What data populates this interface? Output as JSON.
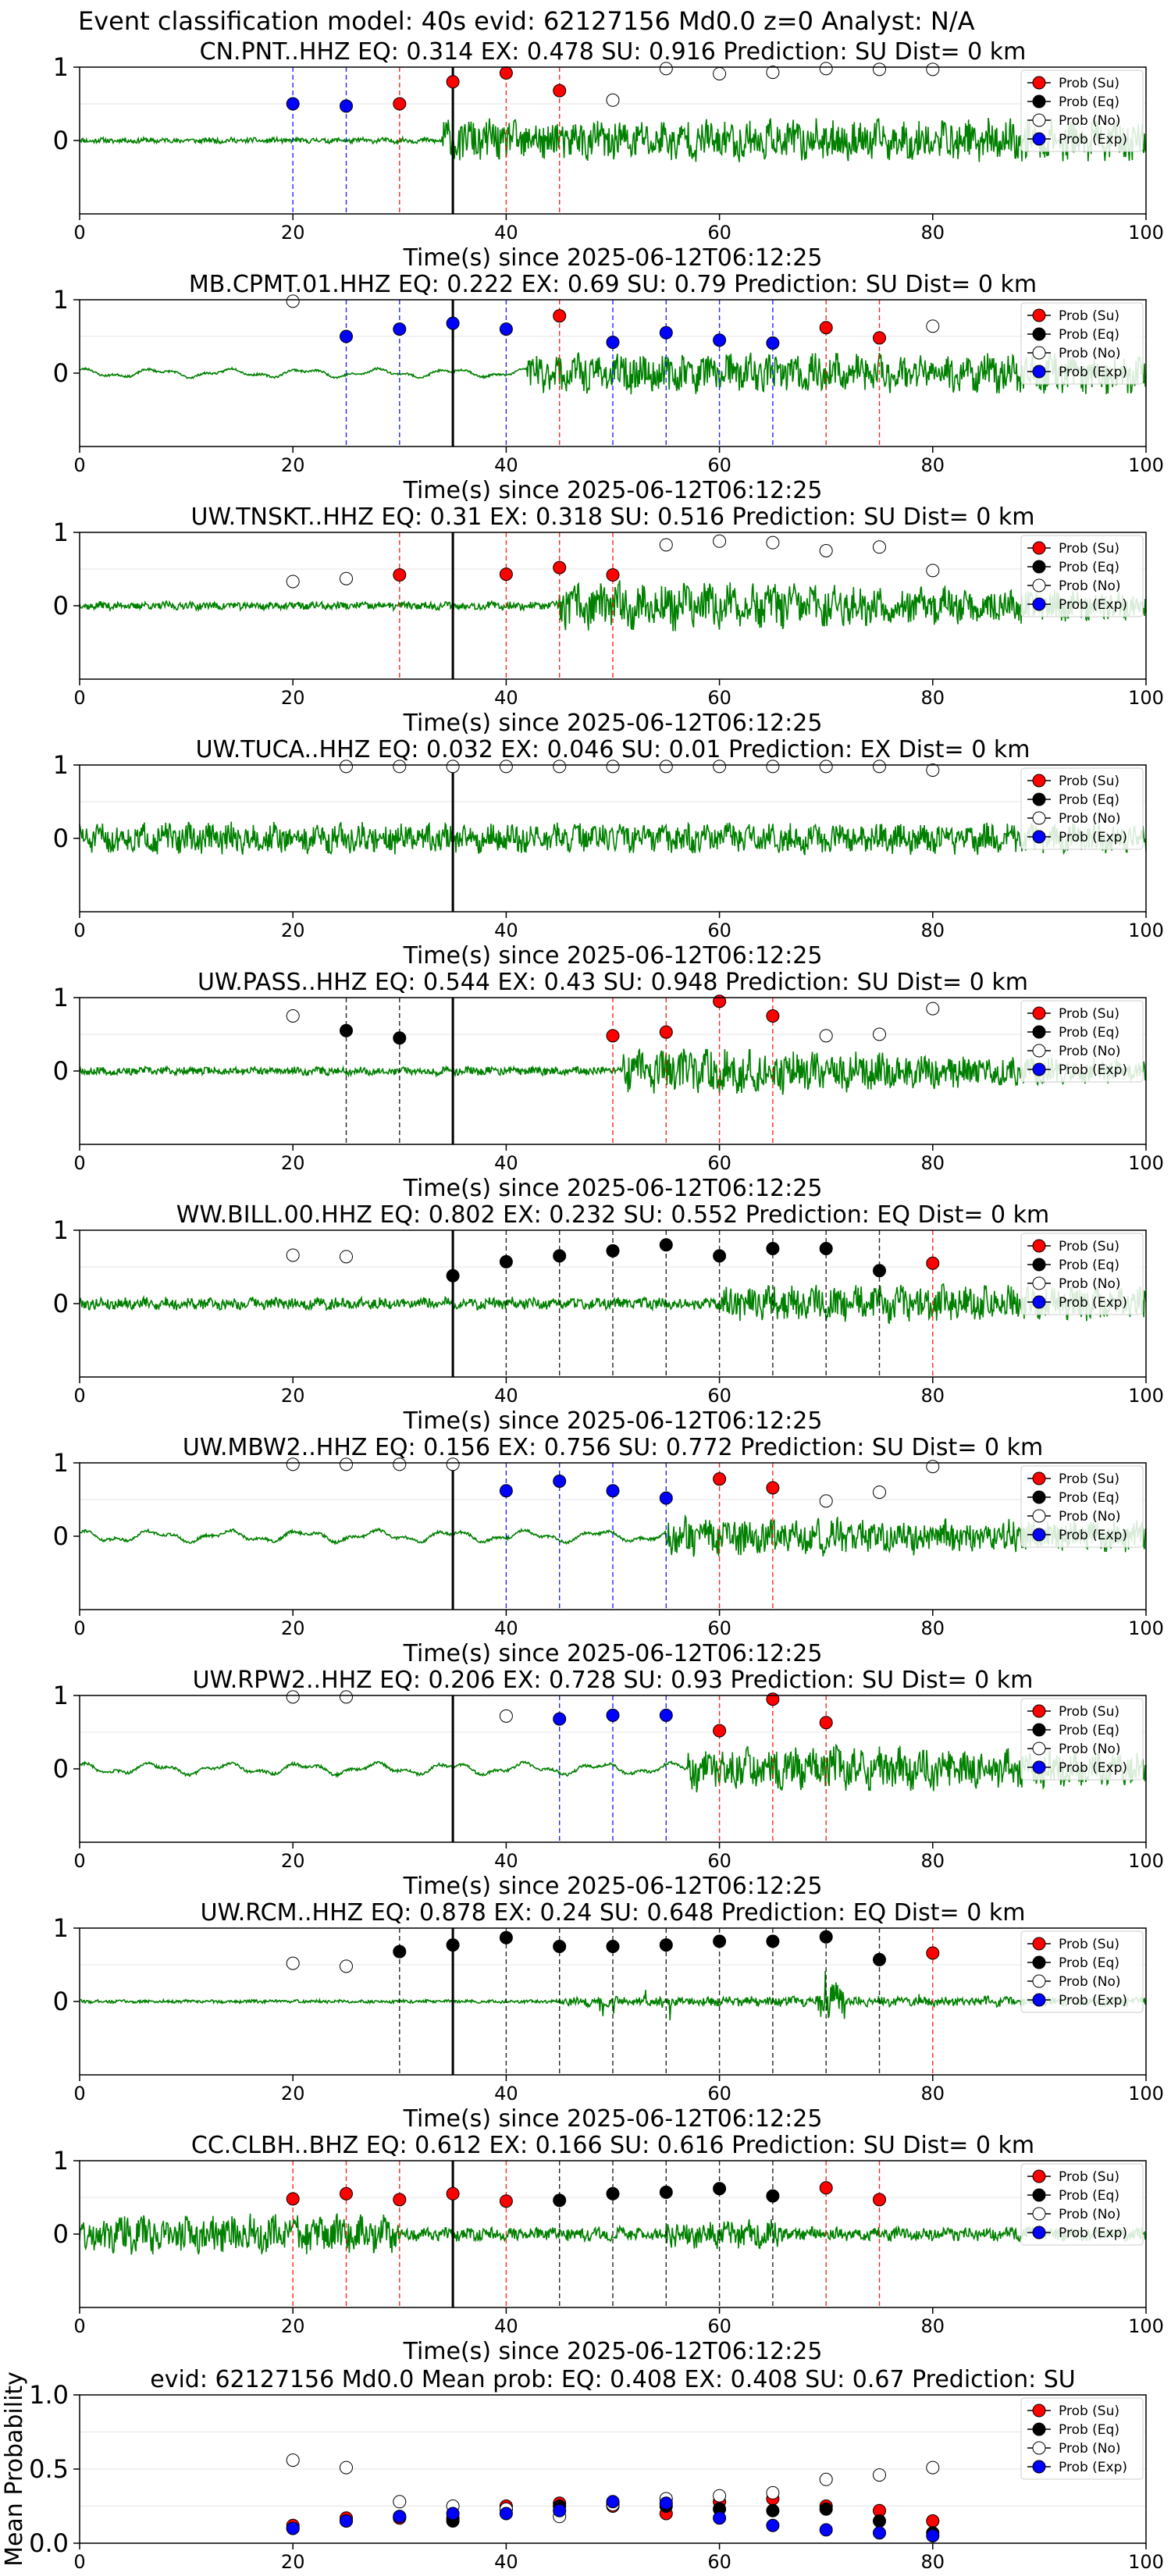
{
  "suptitle": "Event classification model: 40s evid: 62127156 Md0.0 z=0 Analyst: N/A",
  "colors": {
    "waveform": "#008000",
    "su": "#ff0000",
    "eq": "#000000",
    "no": "#ffffff",
    "exp": "#0000ff",
    "line_su": "#ff0000",
    "line_eq": "#000000",
    "line_exp": "#0000ff",
    "pick_line": "#000000"
  },
  "legend_labels": [
    "Prob (Su)",
    "Prob (Eq)",
    "Prob (No)",
    "Prob (Exp)"
  ],
  "xlabel": "Time(s) since 2025-06-12T06:12:25",
  "x_ticks": [
    0,
    20,
    40,
    60,
    80,
    100
  ],
  "y_ticks": [
    1,
    0
  ],
  "chart_data": [
    {
      "type": "scatter",
      "title": "CN.PNT..HHZ   EQ: 0.314  EX: 0.478  SU: 0.916   Prediction: SU    Dist= 0 km",
      "xlim": [
        0,
        100
      ],
      "pick_time": 35,
      "points": [
        {
          "x": 20,
          "y": 0.5,
          "cls": "exp"
        },
        {
          "x": 25,
          "y": 0.47,
          "cls": "exp"
        },
        {
          "x": 30,
          "y": 0.5,
          "cls": "su"
        },
        {
          "x": 35,
          "y": 0.8,
          "cls": "su"
        },
        {
          "x": 40,
          "y": 0.92,
          "cls": "su"
        },
        {
          "x": 45,
          "y": 0.68,
          "cls": "su"
        },
        {
          "x": 50,
          "y": 0.55,
          "cls": "no"
        },
        {
          "x": 55,
          "y": 0.98,
          "cls": "no"
        },
        {
          "x": 60,
          "y": 0.91,
          "cls": "no"
        },
        {
          "x": 65,
          "y": 0.93,
          "cls": "no"
        },
        {
          "x": 70,
          "y": 0.98,
          "cls": "no"
        },
        {
          "x": 75,
          "y": 0.97,
          "cls": "no"
        },
        {
          "x": 80,
          "y": 0.97,
          "cls": "no"
        }
      ],
      "wave": {
        "seed": 11,
        "pre": 0.1,
        "post": 0.75,
        "onset": 34,
        "style": "noise",
        "decay": 0
      }
    },
    {
      "type": "scatter",
      "title": "MB.CPMT.01.HHZ   EQ: 0.222  EX: 0.69  SU: 0.79   Prediction: SU    Dist= 0 km",
      "xlim": [
        0,
        100
      ],
      "pick_time": 35,
      "points": [
        {
          "x": 20,
          "y": 0.98,
          "cls": "no"
        },
        {
          "x": 25,
          "y": 0.5,
          "cls": "exp"
        },
        {
          "x": 30,
          "y": 0.6,
          "cls": "exp"
        },
        {
          "x": 35,
          "y": 0.68,
          "cls": "exp"
        },
        {
          "x": 40,
          "y": 0.6,
          "cls": "exp"
        },
        {
          "x": 45,
          "y": 0.78,
          "cls": "su"
        },
        {
          "x": 50,
          "y": 0.42,
          "cls": "exp"
        },
        {
          "x": 55,
          "y": 0.55,
          "cls": "exp"
        },
        {
          "x": 60,
          "y": 0.45,
          "cls": "exp"
        },
        {
          "x": 65,
          "y": 0.41,
          "cls": "exp"
        },
        {
          "x": 70,
          "y": 0.62,
          "cls": "su"
        },
        {
          "x": 75,
          "y": 0.48,
          "cls": "su"
        },
        {
          "x": 80,
          "y": 0.64,
          "cls": "no"
        }
      ],
      "wave": {
        "seed": 23,
        "pre": 0.22,
        "post": 0.7,
        "onset": 42,
        "style": "wavy",
        "decay": 0
      }
    },
    {
      "type": "scatter",
      "title": "UW.TNSKT..HHZ   EQ: 0.31  EX: 0.318  SU: 0.516   Prediction: SU    Dist= 0 km",
      "xlim": [
        0,
        100
      ],
      "pick_time": 35,
      "points": [
        {
          "x": 20,
          "y": 0.33,
          "cls": "no"
        },
        {
          "x": 25,
          "y": 0.37,
          "cls": "no"
        },
        {
          "x": 30,
          "y": 0.42,
          "cls": "su"
        },
        {
          "x": 40,
          "y": 0.43,
          "cls": "su"
        },
        {
          "x": 45,
          "y": 0.52,
          "cls": "su"
        },
        {
          "x": 50,
          "y": 0.42,
          "cls": "su"
        },
        {
          "x": 55,
          "y": 0.83,
          "cls": "no"
        },
        {
          "x": 60,
          "y": 0.88,
          "cls": "no"
        },
        {
          "x": 65,
          "y": 0.86,
          "cls": "no"
        },
        {
          "x": 70,
          "y": 0.75,
          "cls": "no"
        },
        {
          "x": 75,
          "y": 0.8,
          "cls": "no"
        },
        {
          "x": 80,
          "y": 0.48,
          "cls": "no"
        }
      ],
      "wave": {
        "seed": 37,
        "pre": 0.15,
        "post": 0.85,
        "onset": 45,
        "style": "burst",
        "decay": 0.4
      }
    },
    {
      "type": "scatter",
      "title": "UW.TUCA..HHZ   EQ: 0.032  EX: 0.046  SU: 0.01   Prediction: EX    Dist= 0 km",
      "xlim": [
        0,
        100
      ],
      "pick_time": 35,
      "points": [
        {
          "x": 25,
          "y": 0.98,
          "cls": "no"
        },
        {
          "x": 30,
          "y": 0.98,
          "cls": "no"
        },
        {
          "x": 35,
          "y": 0.98,
          "cls": "no"
        },
        {
          "x": 40,
          "y": 0.98,
          "cls": "no"
        },
        {
          "x": 45,
          "y": 0.98,
          "cls": "no"
        },
        {
          "x": 50,
          "y": 0.98,
          "cls": "no"
        },
        {
          "x": 55,
          "y": 0.98,
          "cls": "no"
        },
        {
          "x": 60,
          "y": 0.98,
          "cls": "no"
        },
        {
          "x": 65,
          "y": 0.98,
          "cls": "no"
        },
        {
          "x": 70,
          "y": 0.98,
          "cls": "no"
        },
        {
          "x": 75,
          "y": 0.98,
          "cls": "no"
        },
        {
          "x": 80,
          "y": 0.93,
          "cls": "no"
        }
      ],
      "wave": {
        "seed": 51,
        "pre": 0.55,
        "post": 0.55,
        "onset": 35,
        "style": "noise",
        "decay": 0
      }
    },
    {
      "type": "scatter",
      "title": "UW.PASS..HHZ   EQ: 0.544  EX: 0.43  SU: 0.948   Prediction: SU    Dist= 0 km",
      "xlim": [
        0,
        100
      ],
      "pick_time": 35,
      "points": [
        {
          "x": 20,
          "y": 0.75,
          "cls": "no"
        },
        {
          "x": 25,
          "y": 0.55,
          "cls": "eq"
        },
        {
          "x": 30,
          "y": 0.45,
          "cls": "eq"
        },
        {
          "x": 50,
          "y": 0.48,
          "cls": "su"
        },
        {
          "x": 55,
          "y": 0.53,
          "cls": "su"
        },
        {
          "x": 60,
          "y": 0.95,
          "cls": "su"
        },
        {
          "x": 65,
          "y": 0.75,
          "cls": "su"
        },
        {
          "x": 70,
          "y": 0.48,
          "cls": "no"
        },
        {
          "x": 75,
          "y": 0.5,
          "cls": "no"
        },
        {
          "x": 80,
          "y": 0.85,
          "cls": "no"
        }
      ],
      "wave": {
        "seed": 67,
        "pre": 0.15,
        "post": 0.8,
        "onset": 51,
        "style": "burst",
        "decay": 0.6
      }
    },
    {
      "type": "scatter",
      "title": "WW.BILL.00.HHZ   EQ: 0.802  EX: 0.232  SU: 0.552   Prediction: EQ    Dist= 0 km",
      "xlim": [
        0,
        100
      ],
      "pick_time": 35,
      "points": [
        {
          "x": 20,
          "y": 0.66,
          "cls": "no"
        },
        {
          "x": 25,
          "y": 0.64,
          "cls": "no"
        },
        {
          "x": 35,
          "y": 0.38,
          "cls": "eq"
        },
        {
          "x": 40,
          "y": 0.57,
          "cls": "eq"
        },
        {
          "x": 45,
          "y": 0.65,
          "cls": "eq"
        },
        {
          "x": 50,
          "y": 0.72,
          "cls": "eq"
        },
        {
          "x": 55,
          "y": 0.8,
          "cls": "eq"
        },
        {
          "x": 60,
          "y": 0.65,
          "cls": "eq"
        },
        {
          "x": 65,
          "y": 0.75,
          "cls": "eq"
        },
        {
          "x": 70,
          "y": 0.75,
          "cls": "eq"
        },
        {
          "x": 75,
          "y": 0.45,
          "cls": "eq"
        },
        {
          "x": 80,
          "y": 0.55,
          "cls": "su"
        }
      ],
      "wave": {
        "seed": 79,
        "pre": 0.22,
        "post": 0.65,
        "onset": 60,
        "style": "noise",
        "decay": 0
      }
    },
    {
      "type": "scatter",
      "title": "UW.MBW2..HHZ   EQ: 0.156  EX: 0.756  SU: 0.772   Prediction: SU    Dist= 0 km",
      "xlim": [
        0,
        100
      ],
      "pick_time": 35,
      "points": [
        {
          "x": 20,
          "y": 0.98,
          "cls": "no"
        },
        {
          "x": 25,
          "y": 0.98,
          "cls": "no"
        },
        {
          "x": 30,
          "y": 0.98,
          "cls": "no"
        },
        {
          "x": 35,
          "y": 0.98,
          "cls": "no"
        },
        {
          "x": 40,
          "y": 0.62,
          "cls": "exp"
        },
        {
          "x": 45,
          "y": 0.75,
          "cls": "exp"
        },
        {
          "x": 50,
          "y": 0.62,
          "cls": "exp"
        },
        {
          "x": 55,
          "y": 0.52,
          "cls": "exp"
        },
        {
          "x": 60,
          "y": 0.78,
          "cls": "su"
        },
        {
          "x": 65,
          "y": 0.66,
          "cls": "su"
        },
        {
          "x": 70,
          "y": 0.48,
          "cls": "no"
        },
        {
          "x": 75,
          "y": 0.6,
          "cls": "no"
        },
        {
          "x": 80,
          "y": 0.95,
          "cls": "no"
        }
      ],
      "wave": {
        "seed": 91,
        "pre": 0.3,
        "post": 0.7,
        "onset": 55,
        "style": "wavy",
        "decay": 0.3
      }
    },
    {
      "type": "scatter",
      "title": "UW.RPW2..HHZ   EQ: 0.206  EX: 0.728  SU: 0.93   Prediction: SU    Dist= 0 km",
      "xlim": [
        0,
        100
      ],
      "pick_time": 35,
      "points": [
        {
          "x": 20,
          "y": 0.98,
          "cls": "no"
        },
        {
          "x": 25,
          "y": 0.98,
          "cls": "no"
        },
        {
          "x": 40,
          "y": 0.72,
          "cls": "no"
        },
        {
          "x": 45,
          "y": 0.68,
          "cls": "exp"
        },
        {
          "x": 50,
          "y": 0.73,
          "cls": "exp"
        },
        {
          "x": 55,
          "y": 0.73,
          "cls": "exp"
        },
        {
          "x": 60,
          "y": 0.52,
          "cls": "su"
        },
        {
          "x": 65,
          "y": 0.95,
          "cls": "su"
        },
        {
          "x": 70,
          "y": 0.63,
          "cls": "su"
        }
      ],
      "wave": {
        "seed": 103,
        "pre": 0.3,
        "post": 0.8,
        "onset": 57,
        "style": "wavy",
        "decay": 0.4
      }
    },
    {
      "type": "scatter",
      "title": "UW.RCM..HHZ   EQ: 0.878  EX: 0.24  SU: 0.648   Prediction: EQ    Dist= 0 km",
      "xlim": [
        0,
        100
      ],
      "pick_time": 35,
      "points": [
        {
          "x": 20,
          "y": 0.52,
          "cls": "no"
        },
        {
          "x": 25,
          "y": 0.48,
          "cls": "no"
        },
        {
          "x": 30,
          "y": 0.68,
          "cls": "eq"
        },
        {
          "x": 35,
          "y": 0.77,
          "cls": "eq"
        },
        {
          "x": 40,
          "y": 0.87,
          "cls": "eq"
        },
        {
          "x": 45,
          "y": 0.75,
          "cls": "eq"
        },
        {
          "x": 50,
          "y": 0.75,
          "cls": "eq"
        },
        {
          "x": 55,
          "y": 0.77,
          "cls": "eq"
        },
        {
          "x": 60,
          "y": 0.82,
          "cls": "eq"
        },
        {
          "x": 65,
          "y": 0.82,
          "cls": "eq"
        },
        {
          "x": 70,
          "y": 0.88,
          "cls": "eq"
        },
        {
          "x": 75,
          "y": 0.57,
          "cls": "eq"
        },
        {
          "x": 80,
          "y": 0.66,
          "cls": "su"
        }
      ],
      "wave": {
        "seed": 117,
        "pre": 0.06,
        "post": 0.18,
        "onset": 45,
        "style": "spiky",
        "decay": 0
      }
    },
    {
      "type": "scatter",
      "title": "CC.CLBH..BHZ   EQ: 0.612  EX: 0.166  SU: 0.616   Prediction: SU    Dist= 0 km",
      "xlim": [
        0,
        100
      ],
      "pick_time": 35,
      "points": [
        {
          "x": 20,
          "y": 0.48,
          "cls": "su"
        },
        {
          "x": 25,
          "y": 0.55,
          "cls": "su"
        },
        {
          "x": 30,
          "y": 0.47,
          "cls": "su"
        },
        {
          "x": 35,
          "y": 0.55,
          "cls": "su"
        },
        {
          "x": 40,
          "y": 0.45,
          "cls": "su"
        },
        {
          "x": 45,
          "y": 0.46,
          "cls": "eq"
        },
        {
          "x": 50,
          "y": 0.55,
          "cls": "eq"
        },
        {
          "x": 55,
          "y": 0.57,
          "cls": "eq"
        },
        {
          "x": 60,
          "y": 0.62,
          "cls": "eq"
        },
        {
          "x": 65,
          "y": 0.52,
          "cls": "eq"
        },
        {
          "x": 70,
          "y": 0.63,
          "cls": "su"
        },
        {
          "x": 75,
          "y": 0.47,
          "cls": "su"
        }
      ],
      "wave": {
        "seed": 131,
        "pre": 0.7,
        "post": 0.25,
        "onset": 35,
        "style": "early",
        "decay": 0
      }
    },
    {
      "type": "scatter",
      "title": "evid: 62127156  Md0.0   Mean prob:   EQ: 0.408  EX: 0.408  SU: 0.67   Prediction: SU",
      "ylabel": "Mean Probability",
      "xlim": [
        0,
        100
      ],
      "ylim": [
        0,
        1
      ],
      "y_ticks": [
        "0.0",
        "0.5",
        "1.0"
      ],
      "series": [
        {
          "name": "Prob (Su)",
          "cls": "su",
          "x": [
            20,
            25,
            30,
            35,
            40,
            45,
            50,
            55,
            60,
            65,
            70,
            75,
            80
          ],
          "y": [
            0.12,
            0.17,
            0.17,
            0.17,
            0.25,
            0.27,
            0.25,
            0.2,
            0.28,
            0.3,
            0.25,
            0.22,
            0.15
          ]
        },
        {
          "name": "Prob (Eq)",
          "cls": "eq",
          "x": [
            20,
            25,
            30,
            35,
            40,
            45,
            50,
            55,
            60,
            65,
            70,
            75,
            80
          ],
          "y": [
            0.1,
            0.15,
            0.18,
            0.15,
            0.23,
            0.25,
            0.27,
            0.25,
            0.23,
            0.22,
            0.23,
            0.15,
            0.07
          ]
        },
        {
          "name": "Prob (No)",
          "cls": "no",
          "x": [
            20,
            25,
            30,
            35,
            40,
            45,
            50,
            55,
            60,
            65,
            70,
            75,
            80
          ],
          "y": [
            0.56,
            0.51,
            0.28,
            0.25,
            0.23,
            0.18,
            0.26,
            0.3,
            0.32,
            0.34,
            0.43,
            0.46,
            0.51
          ]
        },
        {
          "name": "Prob (Exp)",
          "cls": "exp",
          "x": [
            20,
            25,
            30,
            35,
            40,
            45,
            50,
            55,
            60,
            65,
            70,
            75,
            80
          ],
          "y": [
            0.1,
            0.15,
            0.18,
            0.2,
            0.2,
            0.22,
            0.28,
            0.27,
            0.17,
            0.12,
            0.09,
            0.07,
            0.05
          ]
        }
      ]
    }
  ]
}
